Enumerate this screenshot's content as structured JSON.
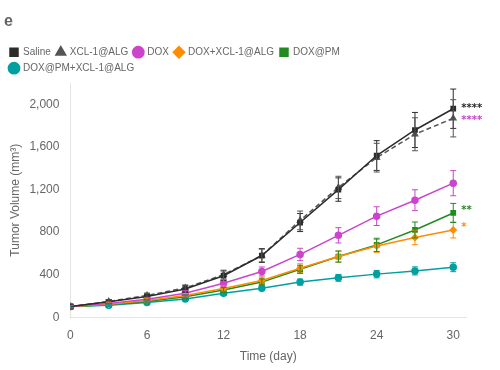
{
  "chart_data": {
    "type": "line",
    "title": "e",
    "x_label": "Time (day)",
    "y_label": "Tumor Volume (mm³)",
    "xlim": [
      0,
      31
    ],
    "ylim": [
      0,
      2200
    ],
    "xticks": [
      0,
      6,
      12,
      18,
      24,
      30
    ],
    "yticks": [
      0,
      400,
      800,
      1200,
      1600,
      2000
    ],
    "grid": false,
    "legend": "upper left",
    "x": [
      0,
      3,
      6,
      9,
      12,
      15,
      18,
      21,
      24,
      27,
      30
    ],
    "series": [
      {
        "name": "Saline",
        "color": "#2c2c2c",
        "marker": "square",
        "line_style": "solid",
        "values": [
          100,
          145,
          195,
          265,
          390,
          580,
          890,
          1200,
          1520,
          1760,
          1960
        ],
        "errors": [
          15,
          18,
          22,
          32,
          45,
          65,
          85,
          110,
          140,
          165,
          185
        ]
      },
      {
        "name": "XCL-1@ALG",
        "color": "#555555",
        "marker": "triangle",
        "line_style": "dashed",
        "values": [
          100,
          148,
          205,
          275,
          400,
          580,
          910,
          1220,
          1500,
          1720,
          1870
        ],
        "errors": [
          12,
          16,
          22,
          28,
          42,
          60,
          88,
          105,
          135,
          155,
          175
        ]
      },
      {
        "name": "DOX",
        "color": "#cc44cc",
        "marker": "circle",
        "line_style": "solid",
        "values": [
          100,
          130,
          168,
          225,
          320,
          430,
          590,
          770,
          950,
          1100,
          1260
        ],
        "errors": [
          12,
          14,
          18,
          24,
          32,
          42,
          58,
          72,
          88,
          98,
          118
        ]
      },
      {
        "name": "DOX+XCL-1@ALG",
        "color": "#ff8c00",
        "marker": "diamond",
        "line_style": "solid",
        "values": [
          100,
          122,
          158,
          205,
          270,
          345,
          460,
          570,
          670,
          750,
          820
        ],
        "errors": [
          10,
          12,
          15,
          18,
          25,
          32,
          42,
          52,
          60,
          68,
          75
        ]
      },
      {
        "name": "DOX@PM",
        "color": "#228B22",
        "marker": "square",
        "line_style": "solid",
        "values": [
          100,
          118,
          148,
          192,
          255,
          330,
          450,
          570,
          680,
          820,
          980
        ],
        "errors": [
          10,
          11,
          14,
          17,
          23,
          30,
          38,
          52,
          62,
          75,
          90
        ]
      },
      {
        "name": "DOX@PM+XCL-1@ALG",
        "color": "#00a0a0",
        "marker": "circle",
        "line_style": "solid",
        "values": [
          100,
          112,
          138,
          172,
          225,
          272,
          330,
          370,
          405,
          435,
          470
        ],
        "errors": [
          8,
          9,
          11,
          14,
          18,
          22,
          28,
          32,
          35,
          38,
          42
        ]
      }
    ],
    "annotations": [
      {
        "text": "****",
        "x": 30.4,
        "y": 1960,
        "color": "#2c2c2c"
      },
      {
        "text": "****",
        "x": 30.4,
        "y": 1850,
        "color": "#cc44cc"
      },
      {
        "text": "**",
        "x": 30.4,
        "y": 1000,
        "color": "#228B22"
      },
      {
        "text": "*",
        "x": 30.4,
        "y": 840,
        "color": "#ff8c00"
      }
    ]
  }
}
